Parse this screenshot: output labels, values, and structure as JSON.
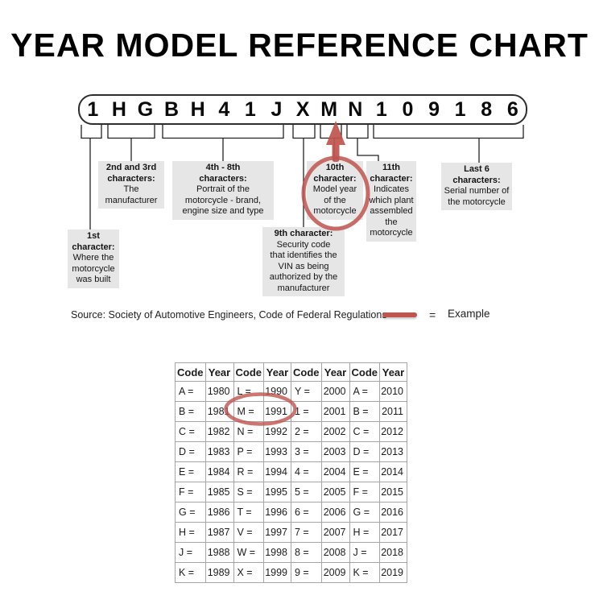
{
  "title": "YEAR MODEL REFERENCE CHART",
  "vin": {
    "characters": [
      "1",
      "H",
      "G",
      "B",
      "H",
      "4",
      "1",
      "J",
      "X",
      "M",
      "N",
      "1",
      "0",
      "9",
      "1",
      "8",
      "6"
    ]
  },
  "labels": {
    "first_char": {
      "bold": [
        "1st",
        "character:"
      ],
      "normal": [
        "Where the",
        "motorcycle",
        "was built"
      ]
    },
    "chars_2_3": {
      "bold": [
        "2nd and 3rd",
        "characters:"
      ],
      "normal": [
        "The",
        "manufacturer"
      ]
    },
    "chars_4_8": {
      "bold": [
        "4th - 8th",
        "characters:"
      ],
      "normal": [
        "Portrait of the",
        "motorcycle - brand,",
        "engine size and type"
      ]
    },
    "char_9": {
      "bold": [
        "9th character:"
      ],
      "normal": [
        "Security code",
        "that identifies the",
        "VIN as being",
        "authorized by the",
        "manufacturer"
      ]
    },
    "char_10": {
      "bold": [
        "10th",
        "character:"
      ],
      "normal": [
        "Model year",
        "of the",
        "motorcycle"
      ]
    },
    "char_11": {
      "bold": [
        "11th",
        "character:"
      ],
      "normal": [
        "Indicates",
        "which plant",
        "assembled",
        "the",
        "motorcycle"
      ]
    },
    "last_6": {
      "bold": [
        "Last 6",
        "characters:"
      ],
      "normal": [
        "Serial number of",
        "the motorcycle"
      ]
    }
  },
  "source_note": "Source:  Society of Automotive Engineers, Code of Federal Regulations",
  "legend": {
    "equals": "=",
    "label": "Example"
  },
  "colors": {
    "accent_red": "#c0544e",
    "label_bg": "#e6e6e6",
    "table_border": "#a6a6a6"
  },
  "year_table": {
    "headers": [
      "Code",
      "Year",
      "Code",
      "Year",
      "Code",
      "Year",
      "Code",
      "Year"
    ],
    "rows": [
      [
        "A =",
        "1980",
        "L =",
        "1990",
        "Y =",
        "2000",
        "A =",
        "2010"
      ],
      [
        "B =",
        "1981",
        "M =",
        "1991",
        "1 =",
        "2001",
        "B =",
        "2011"
      ],
      [
        "C =",
        "1982",
        "N =",
        "1992",
        "2 =",
        "2002",
        "C =",
        "2012"
      ],
      [
        "D =",
        "1983",
        "P =",
        "1993",
        "3 =",
        "2003",
        "D =",
        "2013"
      ],
      [
        "E =",
        "1984",
        "R =",
        "1994",
        "4 =",
        "2004",
        "E =",
        "2014"
      ],
      [
        "F =",
        "1985",
        "S =",
        "1995",
        "5 =",
        "2005",
        "F =",
        "2015"
      ],
      [
        "G =",
        "1986",
        "T =",
        "1996",
        "6 =",
        "2006",
        "G =",
        "2016"
      ],
      [
        "H =",
        "1987",
        "V =",
        "1997",
        "7 =",
        "2007",
        "H =",
        "2017"
      ],
      [
        "J =",
        "1988",
        "W =",
        "1998",
        "8 =",
        "2008",
        "J =",
        "2018"
      ],
      [
        "K =",
        "1989",
        "X =",
        "1999",
        "9 =",
        "2009",
        "K =",
        "2019"
      ]
    ],
    "highlighted_cell": "M = 1991"
  }
}
